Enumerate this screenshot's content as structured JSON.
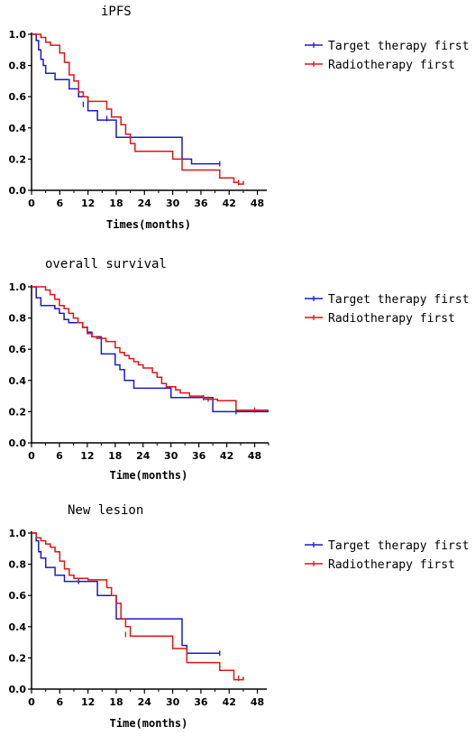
{
  "chart_data": [
    {
      "type": "line",
      "title": "iPFS",
      "xlabel": "Times(months)",
      "ylabel": "",
      "xlim": [
        0,
        50
      ],
      "ylim": [
        0,
        1.0
      ],
      "x_ticks": [
        "0",
        "6",
        "12",
        "18",
        "24",
        "30",
        "36",
        "42",
        "48"
      ],
      "y_ticks": [
        "0.0",
        "0.2",
        "0.4",
        "0.6",
        "0.8",
        "1.0"
      ],
      "grid": false,
      "legend_position": "right",
      "series": [
        {
          "name": "Target therapy first",
          "color": "#1a1acc",
          "steps": [
            [
              0,
              1.0
            ],
            [
              1,
              0.96
            ],
            [
              1.5,
              0.9
            ],
            [
              2,
              0.84
            ],
            [
              2.5,
              0.8
            ],
            [
              3,
              0.75
            ],
            [
              5,
              0.71
            ],
            [
              8,
              0.65
            ],
            [
              10,
              0.6
            ],
            [
              12,
              0.51
            ],
            [
              14,
              0.45
            ],
            [
              18,
              0.34
            ],
            [
              32,
              0.2
            ],
            [
              34,
              0.17
            ],
            [
              40,
              0.17
            ]
          ],
          "censored": [
            [
              11,
              0.55
            ],
            [
              16,
              0.46
            ],
            [
              40,
              0.17
            ]
          ]
        },
        {
          "name": "Radiotherapy first",
          "color": "#e01414",
          "steps": [
            [
              0,
              1.0
            ],
            [
              2,
              0.98
            ],
            [
              3,
              0.95
            ],
            [
              4,
              0.93
            ],
            [
              6,
              0.88
            ],
            [
              7,
              0.82
            ],
            [
              8,
              0.74
            ],
            [
              9,
              0.7
            ],
            [
              10,
              0.63
            ],
            [
              11,
              0.6
            ],
            [
              12,
              0.57
            ],
            [
              16,
              0.52
            ],
            [
              17,
              0.47
            ],
            [
              19,
              0.42
            ],
            [
              20,
              0.36
            ],
            [
              21,
              0.3
            ],
            [
              22,
              0.25
            ],
            [
              30,
              0.2
            ],
            [
              32,
              0.13
            ],
            [
              40,
              0.08
            ],
            [
              43,
              0.05
            ],
            [
              44,
              0.04
            ],
            [
              45,
              0.06
            ]
          ],
          "censored": [
            [
              44,
              0.05
            ]
          ]
        }
      ]
    },
    {
      "type": "line",
      "title": "overall survival",
      "xlabel": "Time(months)",
      "ylabel": "",
      "xlim": [
        0,
        51
      ],
      "ylim": [
        0,
        1.0
      ],
      "x_ticks": [
        "0",
        "6",
        "12",
        "18",
        "24",
        "30",
        "36",
        "42",
        "48"
      ],
      "y_ticks": [
        "0.0",
        "0.2",
        "0.4",
        "0.6",
        "0.8",
        "1.0"
      ],
      "grid": false,
      "legend_position": "right",
      "series": [
        {
          "name": "Target therapy first",
          "color": "#1a1acc",
          "steps": [
            [
              0,
              1.0
            ],
            [
              1,
              0.93
            ],
            [
              2,
              0.88
            ],
            [
              5,
              0.86
            ],
            [
              6,
              0.83
            ],
            [
              7,
              0.79
            ],
            [
              8,
              0.77
            ],
            [
              11,
              0.74
            ],
            [
              12,
              0.71
            ],
            [
              13,
              0.68
            ],
            [
              15,
              0.57
            ],
            [
              18,
              0.5
            ],
            [
              19,
              0.47
            ],
            [
              20,
              0.4
            ],
            [
              22,
              0.35
            ],
            [
              30,
              0.29
            ],
            [
              39,
              0.2
            ],
            [
              51,
              0.2
            ]
          ],
          "censored": [
            [
              12,
              0.73
            ],
            [
              37,
              0.29
            ],
            [
              44,
              0.2
            ]
          ]
        },
        {
          "name": "Radiotherapy first",
          "color": "#e01414",
          "steps": [
            [
              0,
              1.0
            ],
            [
              3,
              0.98
            ],
            [
              4,
              0.95
            ],
            [
              5,
              0.92
            ],
            [
              6,
              0.88
            ],
            [
              7,
              0.86
            ],
            [
              8,
              0.83
            ],
            [
              9,
              0.8
            ],
            [
              10,
              0.77
            ],
            [
              11,
              0.74
            ],
            [
              12,
              0.7
            ],
            [
              13,
              0.68
            ],
            [
              14,
              0.67
            ],
            [
              16,
              0.65
            ],
            [
              18,
              0.61
            ],
            [
              19,
              0.58
            ],
            [
              20,
              0.56
            ],
            [
              21,
              0.54
            ],
            [
              22,
              0.52
            ],
            [
              23,
              0.5
            ],
            [
              24,
              0.48
            ],
            [
              26,
              0.45
            ],
            [
              27,
              0.42
            ],
            [
              28,
              0.38
            ],
            [
              29,
              0.36
            ],
            [
              31,
              0.34
            ],
            [
              32,
              0.32
            ],
            [
              34,
              0.3
            ],
            [
              37,
              0.28
            ],
            [
              40,
              0.27
            ],
            [
              44,
              0.21
            ],
            [
              51,
              0.21
            ]
          ],
          "censored": [
            [
              38,
              0.28
            ],
            [
              48,
              0.21
            ]
          ]
        }
      ]
    },
    {
      "type": "line",
      "title": "New lesion",
      "xlabel": "Time(months)",
      "ylabel": "",
      "xlim": [
        0,
        50
      ],
      "ylim": [
        0,
        1.0
      ],
      "x_ticks": [
        "0",
        "6",
        "12",
        "18",
        "24",
        "30",
        "36",
        "42",
        "48"
      ],
      "y_ticks": [
        "0.0",
        "0.2",
        "0.4",
        "0.6",
        "0.8",
        "1.0"
      ],
      "grid": false,
      "legend_position": "right",
      "series": [
        {
          "name": "Target therapy first",
          "color": "#1a1acc",
          "steps": [
            [
              0,
              1.0
            ],
            [
              1,
              0.95
            ],
            [
              1.5,
              0.88
            ],
            [
              2,
              0.84
            ],
            [
              3,
              0.78
            ],
            [
              5,
              0.73
            ],
            [
              7,
              0.69
            ],
            [
              12,
              0.69
            ],
            [
              14,
              0.6
            ],
            [
              18,
              0.45
            ],
            [
              32,
              0.28
            ],
            [
              33,
              0.23
            ],
            [
              40,
              0.23
            ]
          ],
          "censored": [
            [
              10,
              0.69
            ],
            [
              40,
              0.23
            ]
          ]
        },
        {
          "name": "Radiotherapy first",
          "color": "#e01414",
          "steps": [
            [
              0,
              1.0
            ],
            [
              1,
              0.97
            ],
            [
              2,
              0.95
            ],
            [
              3,
              0.93
            ],
            [
              4,
              0.91
            ],
            [
              5,
              0.88
            ],
            [
              6,
              0.82
            ],
            [
              7,
              0.77
            ],
            [
              8,
              0.73
            ],
            [
              9,
              0.71
            ],
            [
              12,
              0.7
            ],
            [
              16,
              0.65
            ],
            [
              17,
              0.6
            ],
            [
              18,
              0.55
            ],
            [
              19,
              0.45
            ],
            [
              20,
              0.4
            ],
            [
              21,
              0.34
            ],
            [
              30,
              0.26
            ],
            [
              33,
              0.17
            ],
            [
              40,
              0.12
            ],
            [
              43,
              0.06
            ],
            [
              45,
              0.08
            ]
          ],
          "censored": [
            [
              20,
              0.35
            ],
            [
              44,
              0.07
            ]
          ]
        }
      ]
    }
  ]
}
